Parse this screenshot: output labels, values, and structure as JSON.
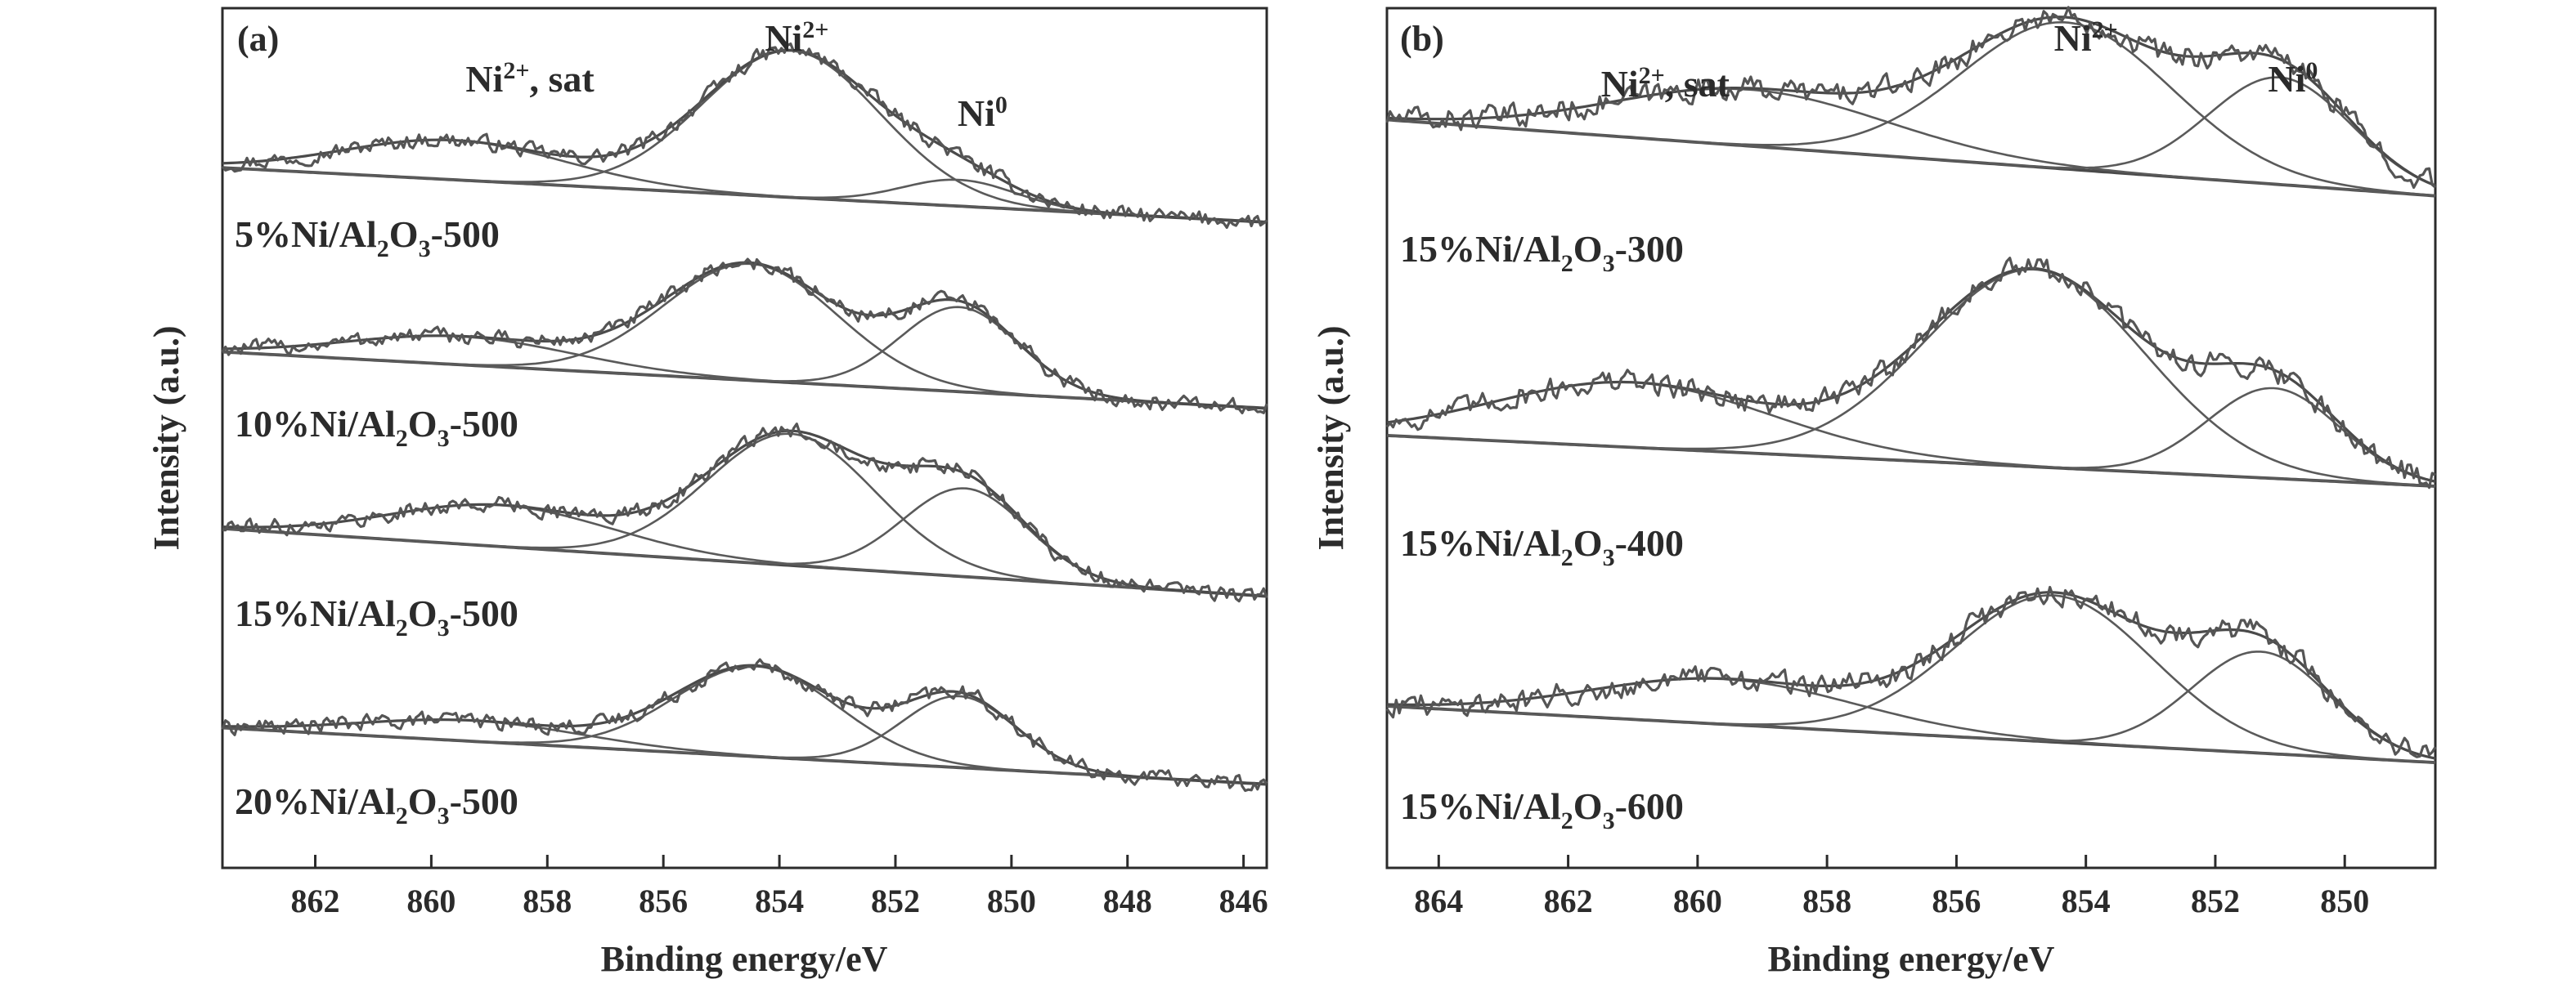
{
  "chart_data": [
    {
      "type": "line",
      "panel_label": "(a)",
      "xlabel": "Binding energy/eV",
      "ylabel": "Intensity (a.u.)",
      "xlim": [
        863.6,
        845.6
      ],
      "x_reversed": true,
      "xticks": [
        862,
        860,
        858,
        856,
        854,
        852,
        850,
        848,
        846
      ],
      "yticks": [],
      "peak_labels": [
        {
          "text": "Ni",
          "sup": "2+",
          "tail": ", sat",
          "x": 858.3
        },
        {
          "text": "Ni",
          "sup": "2+",
          "tail": "",
          "x": 853.7
        },
        {
          "text": "Ni",
          "sup": "0",
          "tail": "",
          "x": 850.5
        }
      ],
      "series": [
        {
          "name": "5%Ni/Al2O3-500",
          "label_parts": [
            "5%Ni/Al",
            "2",
            "O",
            "3",
            "-500"
          ],
          "offset": 3.0,
          "baseline": [
            0.26,
            -0.03
          ],
          "components": [
            {
              "label": "Ni2+, sat",
              "center": 859.6,
              "height": 0.21,
              "fwhm": 4.5
            },
            {
              "label": "Ni2+",
              "center": 853.8,
              "height": 0.78,
              "fwhm": 3.6
            },
            {
              "label": "Ni0",
              "center": 850.9,
              "height": 0.14,
              "fwhm": 2.3
            }
          ]
        },
        {
          "name": "10%Ni/Al2O3-500",
          "label_parts": [
            "10%Ni/Al",
            "2",
            "O",
            "3",
            "-500"
          ],
          "offset": 2.0,
          "baseline": [
            0.28,
            -0.02
          ],
          "components": [
            {
              "label": "Ni2+, sat",
              "center": 859.5,
              "height": 0.15,
              "fwhm": 4.6
            },
            {
              "label": "Ni2+",
              "center": 854.5,
              "height": 0.62,
              "fwhm": 3.5
            },
            {
              "label": "Ni0",
              "center": 850.9,
              "height": 0.45,
              "fwhm": 2.4
            }
          ]
        },
        {
          "name": "15%Ni/Al2O3-500",
          "label_parts": [
            "15%Ni/Al",
            "2",
            "O",
            "3",
            "-500"
          ],
          "offset": 1.0,
          "baseline": [
            0.34,
            -0.02
          ],
          "components": [
            {
              "label": "Ni2+, sat",
              "center": 858.8,
              "height": 0.22,
              "fwhm": 4.5
            },
            {
              "label": "Ni2+",
              "center": 853.8,
              "height": 0.7,
              "fwhm": 3.4
            },
            {
              "label": "Ni0",
              "center": 850.8,
              "height": 0.47,
              "fwhm": 2.5
            }
          ]
        },
        {
          "name": "20%Ni/Al2O3-500",
          "label_parts": [
            "20%Ni/Al",
            "2",
            "O",
            "3",
            "-500"
          ],
          "offset": 0.0,
          "baseline": [
            0.28,
            -0.02
          ],
          "components": [
            {
              "label": "Ni2+, sat",
              "center": 859.3,
              "height": 0.11,
              "fwhm": 4.5
            },
            {
              "label": "Ni2+",
              "center": 854.4,
              "height": 0.48,
              "fwhm": 3.3
            },
            {
              "label": "Ni0",
              "center": 850.9,
              "height": 0.38,
              "fwhm": 2.3
            }
          ]
        }
      ]
    },
    {
      "type": "line",
      "panel_label": "(b)",
      "xlabel": "Binding energy/eV",
      "ylabel": "Intensity (a.u.)",
      "xlim": [
        864.8,
        848.6
      ],
      "x_reversed": true,
      "xticks": [
        864,
        862,
        860,
        858,
        856,
        854,
        852,
        850
      ],
      "yticks": [],
      "peak_labels": [
        {
          "text": "Ni",
          "sup": "2+",
          "tail": ", sat",
          "x": 860.5
        },
        {
          "text": "Ni",
          "sup": "2+",
          "tail": "",
          "x": 854.0
        },
        {
          "text": "Ni",
          "sup": "0",
          "tail": "",
          "x": 850.8
        }
      ],
      "series": [
        {
          "name": "15%Ni/Al2O3-300",
          "label_parts": [
            "15%Ni/Al",
            "2",
            "O",
            "3",
            "-300"
          ],
          "offset": 2.0,
          "baseline": [
            0.3,
            0.03
          ],
          "components": [
            {
              "label": "Ni2+, sat",
              "center": 859.2,
              "height": 0.2,
              "fwhm": 5.0
            },
            {
              "label": "Ni2+",
              "center": 854.3,
              "height": 0.52,
              "fwhm": 3.8
            },
            {
              "label": "Ni0",
              "center": 851.0,
              "height": 0.38,
              "fwhm": 2.6
            }
          ]
        },
        {
          "name": "15%Ni/Al2O3-400",
          "label_parts": [
            "15%Ni/Al",
            "2",
            "O",
            "3",
            "-400"
          ],
          "offset": 1.0,
          "baseline": [
            0.18,
            0.0
          ],
          "components": [
            {
              "label": "Ni2+, sat",
              "center": 861.0,
              "height": 0.23,
              "fwhm": 5.0
            },
            {
              "label": "Ni2+",
              "center": 854.8,
              "height": 0.7,
              "fwhm": 4.0
            },
            {
              "label": "Ni0",
              "center": 851.1,
              "height": 0.32,
              "fwhm": 2.4
            }
          ]
        },
        {
          "name": "15%Ni/Al2O3-600",
          "label_parts": [
            "15%Ni/Al",
            "2",
            "O",
            "3",
            "-600"
          ],
          "offset": 0.0,
          "baseline": [
            0.22,
            0.02
          ],
          "components": [
            {
              "label": "Ni2+, sat",
              "center": 859.6,
              "height": 0.16,
              "fwhm": 4.8
            },
            {
              "label": "Ni2+",
              "center": 854.5,
              "height": 0.52,
              "fwhm": 3.6
            },
            {
              "label": "Ni0",
              "center": 851.3,
              "height": 0.36,
              "fwhm": 2.5
            }
          ]
        }
      ]
    }
  ]
}
